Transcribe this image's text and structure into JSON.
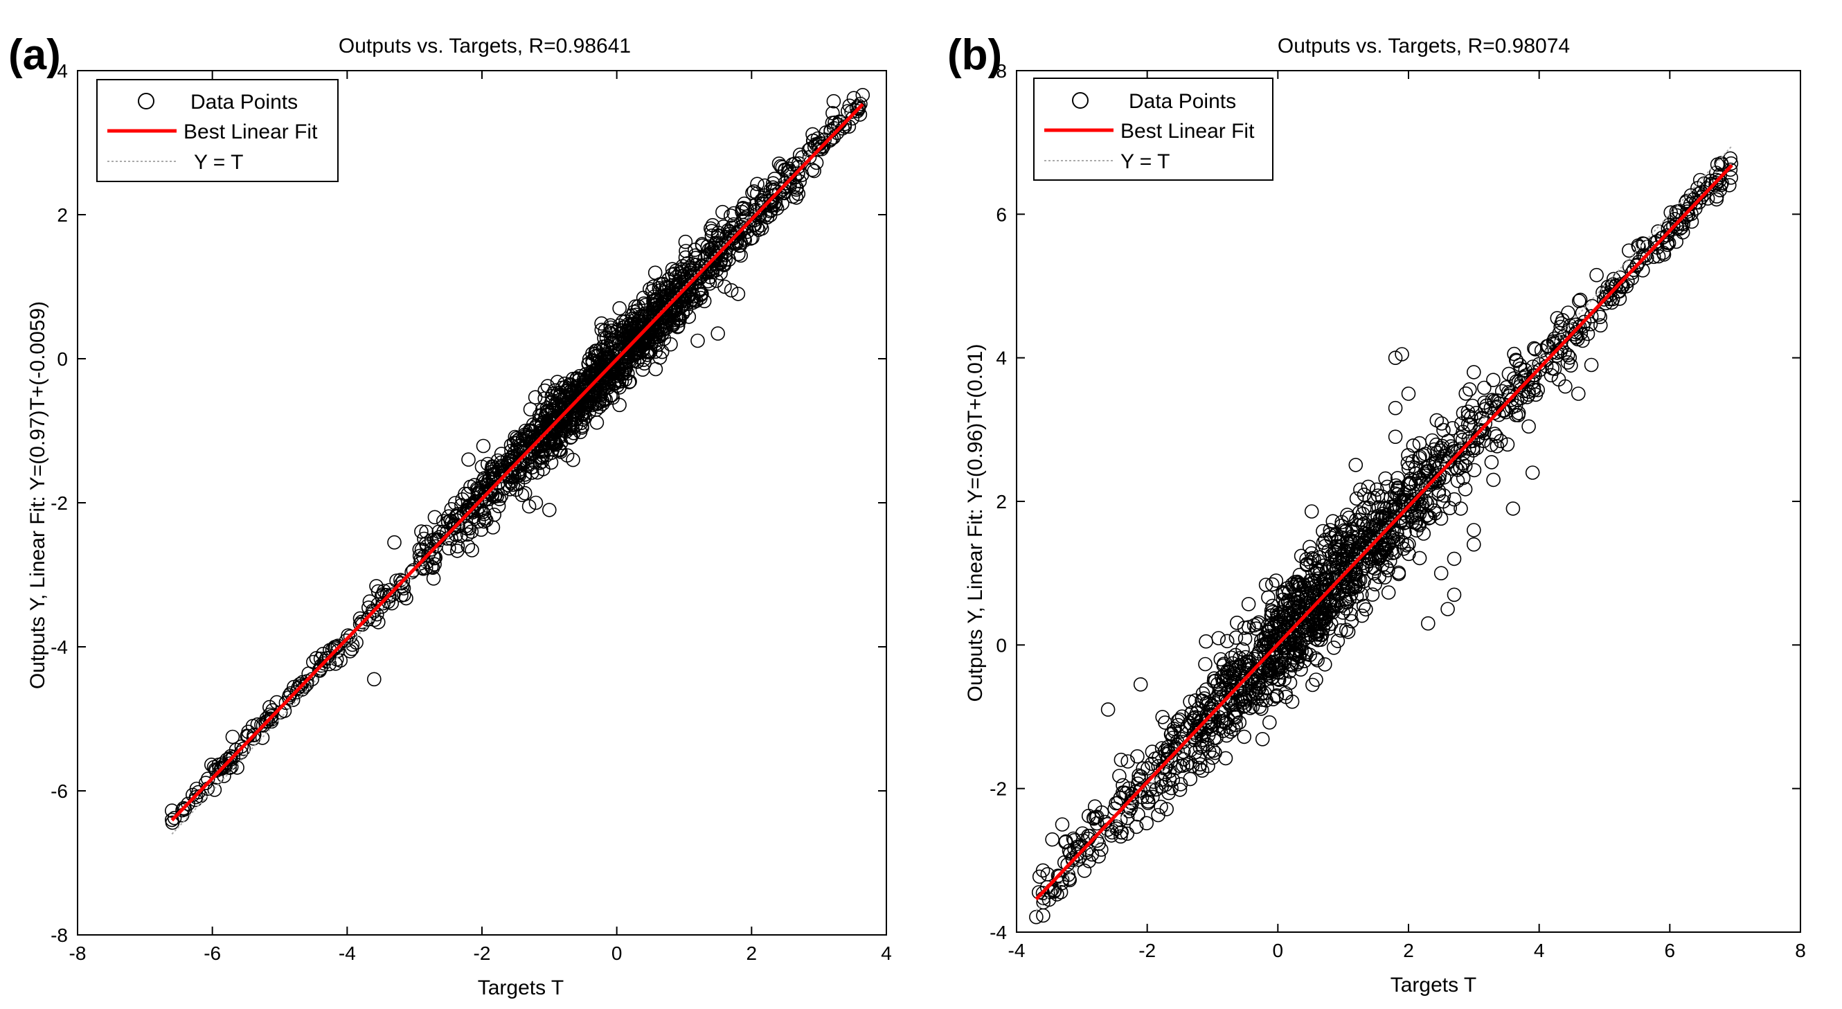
{
  "chart_data": [
    {
      "type": "scatter",
      "panel_label": "(a)",
      "title": "Outputs vs. Targets, R=0.98641",
      "xlabel": "Targets T",
      "ylabel": "Outputs Y,  Linear Fit: Y=(0.97)T+(-0.0059)",
      "xlim": [
        -8,
        4
      ],
      "ylim": [
        -8,
        4
      ],
      "xticks": [
        -8,
        -6,
        -4,
        -2,
        0,
        2,
        4
      ],
      "yticks": [
        -8,
        -6,
        -4,
        -2,
        0,
        2,
        4
      ],
      "grid": false,
      "legend_position": "top-left",
      "legend": [
        {
          "label": "Data Points",
          "style": "marker"
        },
        {
          "label": "Best Linear Fit",
          "style": "red-line"
        },
        {
          "label": "Y = T",
          "style": "dotted-line"
        }
      ],
      "fit": {
        "slope": 0.97,
        "intercept": -0.0059
      },
      "data_range": [
        -6.6,
        3.65
      ],
      "spread": 0.12,
      "n_points": 1500,
      "seed": 11,
      "points": [
        {
          "x": 1.6,
          "y": 1.0
        },
        {
          "x": 1.7,
          "y": 0.95
        },
        {
          "x": 1.8,
          "y": 0.9
        },
        {
          "x": 1.5,
          "y": 0.35
        },
        {
          "x": 1.3,
          "y": 0.8
        },
        {
          "x": 0.8,
          "y": 0.2
        },
        {
          "x": 0.5,
          "y": 0.1
        },
        {
          "x": 1.2,
          "y": 0.25
        },
        {
          "x": -1.3,
          "y": -2.05
        },
        {
          "x": -1.2,
          "y": -2.0
        },
        {
          "x": -1.0,
          "y": -2.1
        },
        {
          "x": -2.7,
          "y": -2.2
        },
        {
          "x": -2.9,
          "y": -2.4
        },
        {
          "x": -3.3,
          "y": -2.55
        },
        {
          "x": -2.2,
          "y": -1.4
        },
        {
          "x": -2.0,
          "y": -1.5
        },
        {
          "x": -3.6,
          "y": -4.45
        },
        {
          "x": -5.4,
          "y": -5.1
        },
        {
          "x": -5.7,
          "y": -5.25
        },
        {
          "x": 1.9,
          "y": 1.95
        }
      ],
      "color_line": "#ff0000",
      "color_marker": "#000000",
      "color_dotted": "#aaaaaa"
    },
    {
      "type": "scatter",
      "panel_label": "(b)",
      "title": "Outputs vs. Targets, R=0.98074",
      "xlabel": "Targets T",
      "ylabel": "Outputs Y,  Linear Fit: Y=(0.96)T+(0.01)",
      "xlim": [
        -4,
        8
      ],
      "ylim": [
        -4,
        8
      ],
      "xticks": [
        -4,
        -2,
        0,
        2,
        4,
        6,
        8
      ],
      "yticks": [
        -4,
        -2,
        0,
        2,
        4,
        6,
        8
      ],
      "grid": false,
      "legend_position": "top-left",
      "legend": [
        {
          "label": "Data Points",
          "style": "marker"
        },
        {
          "label": "Best Linear Fit",
          "style": "red-line"
        },
        {
          "label": "Y = T",
          "style": "dotted-line"
        }
      ],
      "fit": {
        "slope": 0.96,
        "intercept": 0.01
      },
      "data_range": [
        -3.7,
        6.95
      ],
      "spread": 0.2,
      "n_points": 1500,
      "seed": 29,
      "points": [
        {
          "x": 1.8,
          "y": 4.0
        },
        {
          "x": 1.9,
          "y": 4.05
        },
        {
          "x": 2.0,
          "y": 3.5
        },
        {
          "x": 1.8,
          "y": 3.3
        },
        {
          "x": 1.8,
          "y": 2.9
        },
        {
          "x": 3.0,
          "y": 3.8
        },
        {
          "x": 4.3,
          "y": 3.7
        },
        {
          "x": 4.4,
          "y": 3.6
        },
        {
          "x": 4.6,
          "y": 3.5
        },
        {
          "x": 4.8,
          "y": 3.9
        },
        {
          "x": 3.9,
          "y": 2.4
        },
        {
          "x": 3.6,
          "y": 1.9
        },
        {
          "x": 3.3,
          "y": 2.3
        },
        {
          "x": 2.8,
          "y": 1.9
        },
        {
          "x": 3.0,
          "y": 1.6
        },
        {
          "x": 3.0,
          "y": 1.4
        },
        {
          "x": 2.5,
          "y": 1.0
        },
        {
          "x": 2.6,
          "y": 0.5
        },
        {
          "x": 2.3,
          "y": 0.3
        },
        {
          "x": 2.7,
          "y": 0.7
        },
        {
          "x": 0.8,
          "y": 1.6
        },
        {
          "x": -1.1,
          "y": 0.05
        },
        {
          "x": -2.1,
          "y": -0.55
        },
        {
          "x": -2.6,
          "y": -0.9
        },
        {
          "x": -2.4,
          "y": -1.6
        },
        {
          "x": -2.8,
          "y": -2.25
        },
        {
          "x": -3.3,
          "y": -2.5
        },
        {
          "x": -2.9,
          "y": -2.7
        },
        {
          "x": 2.7,
          "y": 1.2
        }
      ],
      "color_line": "#ff0000",
      "color_marker": "#000000",
      "color_dotted": "#aaaaaa"
    }
  ]
}
